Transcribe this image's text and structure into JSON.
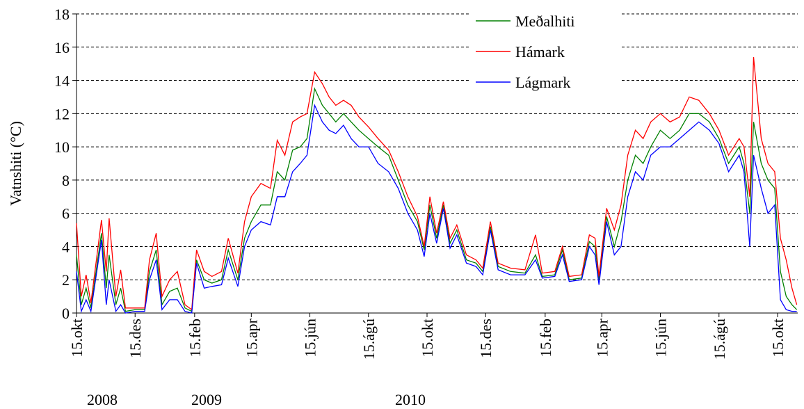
{
  "chart_data": {
    "type": "line",
    "y_label": "Vatnshiti (°C)",
    "x": [
      "2008-10-15",
      "2008-10-20",
      "2008-10-25",
      "2008-10-30",
      "2008-11-10",
      "2008-11-15",
      "2008-11-18",
      "2008-11-25",
      "2008-11-30",
      "2008-12-05",
      "2008-12-15",
      "2008-12-25",
      "2008-12-30",
      "2009-01-06",
      "2009-01-12",
      "2009-01-20",
      "2009-01-28",
      "2009-02-05",
      "2009-02-12",
      "2009-02-17",
      "2009-02-25",
      "2009-03-05",
      "2009-03-15",
      "2009-03-22",
      "2009-04-01",
      "2009-04-08",
      "2009-04-15",
      "2009-04-25",
      "2009-05-05",
      "2009-05-12",
      "2009-05-20",
      "2009-05-28",
      "2009-06-05",
      "2009-06-12",
      "2009-06-20",
      "2009-06-28",
      "2009-07-05",
      "2009-07-12",
      "2009-07-20",
      "2009-07-28",
      "2009-08-05",
      "2009-08-15",
      "2009-08-25",
      "2009-09-05",
      "2009-09-15",
      "2009-09-25",
      "2009-10-05",
      "2009-10-12",
      "2009-10-18",
      "2009-10-25",
      "2009-11-01",
      "2009-11-08",
      "2009-11-15",
      "2009-11-25",
      "2009-12-05",
      "2009-12-12",
      "2009-12-20",
      "2009-12-28",
      "2010-01-10",
      "2010-01-25",
      "2010-02-05",
      "2010-02-12",
      "2010-02-25",
      "2010-03-05",
      "2010-03-12",
      "2010-03-25",
      "2010-04-02",
      "2010-04-08",
      "2010-04-12",
      "2010-04-20",
      "2010-04-28",
      "2010-05-05",
      "2010-05-12",
      "2010-05-20",
      "2010-05-28",
      "2010-06-05",
      "2010-06-15",
      "2010-06-25",
      "2010-07-05",
      "2010-07-15",
      "2010-07-25",
      "2010-08-05",
      "2010-08-15",
      "2010-08-25",
      "2010-09-05",
      "2010-09-10",
      "2010-09-16",
      "2010-09-20",
      "2010-09-28",
      "2010-10-05",
      "2010-10-12",
      "2010-10-18",
      "2010-10-24",
      "2010-10-30",
      "2010-11-04"
    ],
    "series": [
      {
        "name": "Meðalhiti",
        "color": "#008000",
        "values": [
          3.5,
          0.5,
          1.5,
          0.3,
          4.8,
          1.5,
          3.5,
          0.5,
          1.5,
          0.1,
          0.2,
          0.2,
          2.5,
          3.8,
          0.5,
          1.3,
          1.5,
          0.3,
          0.1,
          3.2,
          2.0,
          1.8,
          2.0,
          3.8,
          2.0,
          4.5,
          5.5,
          6.5,
          6.5,
          8.5,
          8.0,
          9.8,
          10.0,
          10.5,
          13.5,
          12.5,
          12.0,
          11.5,
          12.0,
          11.5,
          11.0,
          10.5,
          10.0,
          9.5,
          8.0,
          6.5,
          5.5,
          3.8,
          6.5,
          4.5,
          6.5,
          4.2,
          5.0,
          3.2,
          3.0,
          2.5,
          5.2,
          2.8,
          2.5,
          2.4,
          3.5,
          2.2,
          2.3,
          3.8,
          2.0,
          2.1,
          4.3,
          4.0,
          2.0,
          5.8,
          4.0,
          5.5,
          8.0,
          9.5,
          9.0,
          10.0,
          11.0,
          10.5,
          11.0,
          12.0,
          12.0,
          11.5,
          10.5,
          9.0,
          10.0,
          9.0,
          6.0,
          11.5,
          9.0,
          8.0,
          7.5,
          2.5,
          1.0,
          0.5,
          0.2
        ]
      },
      {
        "name": "Hámark",
        "color": "#ff0000",
        "values": [
          5.4,
          1.0,
          2.3,
          0.6,
          5.6,
          2.5,
          5.7,
          1.0,
          2.6,
          0.3,
          0.3,
          0.3,
          3.2,
          4.8,
          1.0,
          2.0,
          2.5,
          0.5,
          0.2,
          3.8,
          2.5,
          2.2,
          2.5,
          4.5,
          2.4,
          5.5,
          7.0,
          7.8,
          7.5,
          10.4,
          9.5,
          11.5,
          11.8,
          12.0,
          14.5,
          13.8,
          13.0,
          12.5,
          12.8,
          12.5,
          11.8,
          11.2,
          10.5,
          9.8,
          8.5,
          7.0,
          5.8,
          4.0,
          7.0,
          4.8,
          6.7,
          4.5,
          5.3,
          3.5,
          3.2,
          2.7,
          5.5,
          3.0,
          2.7,
          2.6,
          4.7,
          2.4,
          2.5,
          4.0,
          2.2,
          2.3,
          4.7,
          4.5,
          2.2,
          6.3,
          5.0,
          6.5,
          9.5,
          11.0,
          10.5,
          11.5,
          12.0,
          11.5,
          11.8,
          13.0,
          12.8,
          12.0,
          11.0,
          9.5,
          10.5,
          10.0,
          7.0,
          15.4,
          10.5,
          9.0,
          8.5,
          4.5,
          3.2,
          1.5,
          0.5
        ]
      },
      {
        "name": "Lágmark",
        "color": "#0000ff",
        "values": [
          2.5,
          0.1,
          0.8,
          0.1,
          4.4,
          0.5,
          2.0,
          0.1,
          0.5,
          0.0,
          0.1,
          0.1,
          2.0,
          3.2,
          0.2,
          0.8,
          0.8,
          0.1,
          0.0,
          3.0,
          1.5,
          1.6,
          1.7,
          3.3,
          1.6,
          4.0,
          5.0,
          5.5,
          5.3,
          7.0,
          7.0,
          8.5,
          9.0,
          9.5,
          12.5,
          11.5,
          11.0,
          10.8,
          11.3,
          10.5,
          10.0,
          10.0,
          9.0,
          8.5,
          7.5,
          6.0,
          5.0,
          3.4,
          6.0,
          4.2,
          6.3,
          3.9,
          4.7,
          3.0,
          2.8,
          2.3,
          5.0,
          2.6,
          2.3,
          2.3,
          3.2,
          2.1,
          2.2,
          3.5,
          1.9,
          2.0,
          4.0,
          3.5,
          1.7,
          5.5,
          3.5,
          4.0,
          7.0,
          8.5,
          8.0,
          9.5,
          10.0,
          10.0,
          10.5,
          11.0,
          11.5,
          11.0,
          10.2,
          8.5,
          9.5,
          8.5,
          4.0,
          9.5,
          7.5,
          6.0,
          6.5,
          0.8,
          0.2,
          0.1,
          0.1
        ]
      }
    ],
    "xlim": [
      "2008-10-15",
      "2010-11-05"
    ],
    "xticks": [
      {
        "value": "2008-10-15",
        "label": "15.okt"
      },
      {
        "value": "2008-12-15",
        "label": "15.des"
      },
      {
        "value": "2009-02-15",
        "label": "15.feb"
      },
      {
        "value": "2009-04-15",
        "label": "15.apr"
      },
      {
        "value": "2009-06-15",
        "label": "15.jún"
      },
      {
        "value": "2009-08-15",
        "label": "15.ágú"
      },
      {
        "value": "2009-10-15",
        "label": "15.okt"
      },
      {
        "value": "2009-12-15",
        "label": "15.des"
      },
      {
        "value": "2010-02-15",
        "label": "15.feb"
      },
      {
        "value": "2010-04-15",
        "label": "15.apr"
      },
      {
        "value": "2010-06-15",
        "label": "15.jún"
      },
      {
        "value": "2010-08-15",
        "label": "15.ágú"
      },
      {
        "value": "2010-10-15",
        "label": "15.okt"
      }
    ],
    "year_labels": [
      "2008",
      "2009",
      "2010"
    ],
    "ylim": [
      0,
      18
    ],
    "yticks": [
      0,
      2,
      4,
      6,
      8,
      10,
      12,
      14,
      16,
      18
    ],
    "grid": true
  }
}
